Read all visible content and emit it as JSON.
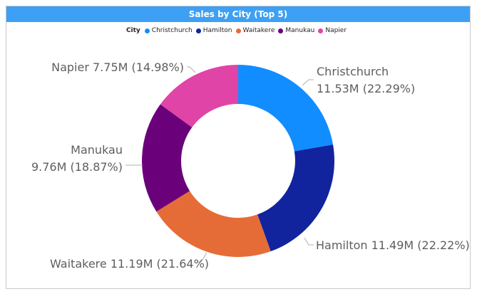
{
  "title": "Sales by City (Top 5)",
  "legend": {
    "title": "City",
    "items": [
      {
        "label": "Christchurch",
        "color": "#118dff"
      },
      {
        "label": "Hamilton",
        "color": "#12239e"
      },
      {
        "label": "Waitakere",
        "color": "#e66c37"
      },
      {
        "label": "Manukau",
        "color": "#6b007b"
      },
      {
        "label": "Napier",
        "color": "#e044a7"
      }
    ]
  },
  "chart_data": {
    "type": "pie",
    "subtype": "donut",
    "title": "Sales by City (Top 5)",
    "legend_title": "City",
    "legend_position": "top",
    "categories": [
      "Christchurch",
      "Hamilton",
      "Waitakere",
      "Manukau",
      "Napier"
    ],
    "values": [
      11.53,
      11.49,
      11.19,
      9.76,
      7.75
    ],
    "unit": "M",
    "percentages": [
      22.29,
      22.22,
      21.64,
      18.87,
      14.98
    ],
    "colors": [
      "#118dff",
      "#12239e",
      "#e66c37",
      "#6b007b",
      "#e044a7"
    ],
    "data_labels": [
      {
        "line1": "Christchurch",
        "line2": "11.53M (22.29%)"
      },
      {
        "line1": "Hamilton 11.49M (22.22%)",
        "line2": ""
      },
      {
        "line1": "Waitakere 11.19M (21.64%)",
        "line2": ""
      },
      {
        "line1": "Manukau",
        "line2": "9.76M (18.87%)"
      },
      {
        "line1": "Napier 7.75M (14.98%)",
        "line2": ""
      }
    ]
  }
}
